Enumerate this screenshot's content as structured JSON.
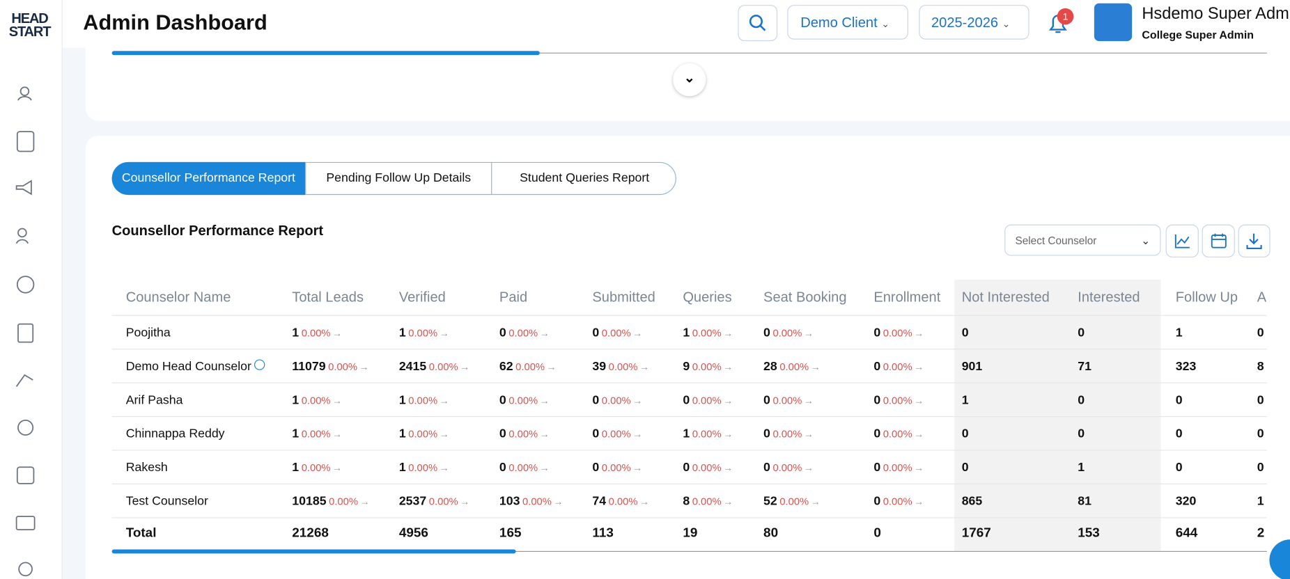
{
  "logo": {
    "line1": "HEAD",
    "line2": "START"
  },
  "header": {
    "title": "Admin Dashboard",
    "client": "Demo Client",
    "year": "2025-2026",
    "notifications": "1",
    "user_name": "Hsdemo Super Admin",
    "user_role": "College Super Admin"
  },
  "tabs": [
    "Counsellor Performance Report",
    "Pending Follow Up Details",
    "Student Queries Report"
  ],
  "report": {
    "title": "Counsellor Performance Report",
    "select_placeholder": "Select Counselor"
  },
  "table": {
    "columns": [
      "Counselor Name",
      "Total Leads",
      "Verified",
      "Paid",
      "Submitted",
      "Queries",
      "Seat Booking",
      "Enrollment",
      "Not Interested",
      "Interested",
      "Follow Up",
      "Ap"
    ],
    "rows": [
      {
        "name": "Poojitha",
        "counts": [
          1,
          1,
          0,
          0,
          1,
          0,
          0
        ],
        "pcts": [
          "0.00%",
          "0.00%",
          "0.00%",
          "0.00%",
          "0.00%",
          "0.00%",
          "0.00%"
        ],
        "extra": [
          0,
          0,
          1
        ],
        "clipped": "0"
      },
      {
        "name": "Demo Head Counselor",
        "counts": [
          11079,
          2415,
          62,
          39,
          9,
          28,
          0
        ],
        "pcts": [
          "0.00%",
          "0.00%",
          "0.00%",
          "0.00%",
          "0.00%",
          "0.00%",
          "0.00%"
        ],
        "extra": [
          901,
          71,
          323
        ],
        "clipped": "8"
      },
      {
        "name": "Arif Pasha",
        "counts": [
          1,
          1,
          0,
          0,
          0,
          0,
          0
        ],
        "pcts": [
          "0.00%",
          "0.00%",
          "0.00%",
          "0.00%",
          "0.00%",
          "0.00%",
          "0.00%"
        ],
        "extra": [
          1,
          0,
          0
        ],
        "clipped": "0"
      },
      {
        "name": "Chinnappa Reddy",
        "counts": [
          1,
          1,
          0,
          0,
          1,
          0,
          0
        ],
        "pcts": [
          "0.00%",
          "0.00%",
          "0.00%",
          "0.00%",
          "0.00%",
          "0.00%",
          "0.00%"
        ],
        "extra": [
          0,
          0,
          0
        ],
        "clipped": "0"
      },
      {
        "name": "Rakesh",
        "counts": [
          1,
          1,
          0,
          0,
          0,
          0,
          0
        ],
        "pcts": [
          "0.00%",
          "0.00%",
          "0.00%",
          "0.00%",
          "0.00%",
          "0.00%",
          "0.00%"
        ],
        "extra": [
          0,
          1,
          0
        ],
        "clipped": "0"
      },
      {
        "name": "Test Counselor",
        "counts": [
          10185,
          2537,
          103,
          74,
          8,
          52,
          0
        ],
        "pcts": [
          "0.00%",
          "0.00%",
          "0.00%",
          "0.00%",
          "0.00%",
          "0.00%",
          "0.00%"
        ],
        "extra": [
          865,
          81,
          320
        ],
        "clipped": "1"
      }
    ],
    "total": {
      "label": "Total",
      "values": [
        21268,
        4956,
        165,
        113,
        19,
        80,
        0,
        1767,
        153,
        644
      ],
      "clipped": "2"
    }
  }
}
